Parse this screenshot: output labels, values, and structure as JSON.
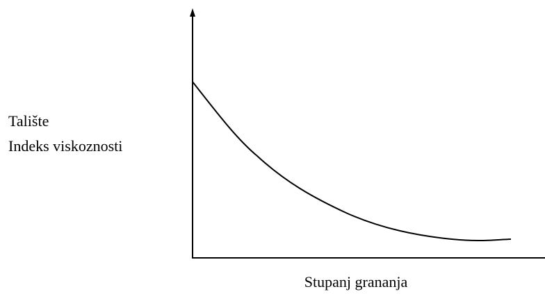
{
  "y_axis_label": [
    "Talište",
    "Indeks viskoznosti"
  ],
  "x_axis_label": "Stupanj grananja"
}
